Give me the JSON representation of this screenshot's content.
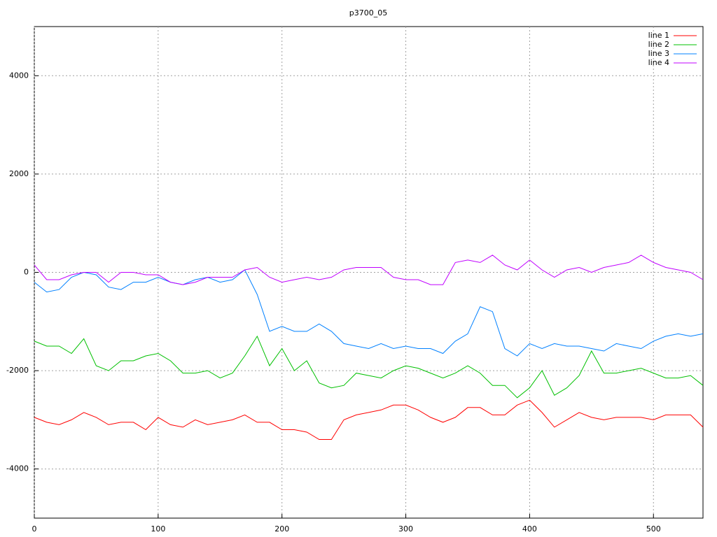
{
  "chart_data": {
    "type": "line",
    "title": "p3700_05",
    "x": [
      0,
      10,
      20,
      30,
      40,
      50,
      60,
      70,
      80,
      90,
      100,
      110,
      120,
      130,
      140,
      150,
      160,
      170,
      180,
      190,
      200,
      210,
      220,
      230,
      240,
      250,
      260,
      270,
      280,
      290,
      300,
      310,
      320,
      330,
      340,
      350,
      360,
      370,
      380,
      390,
      400,
      410,
      420,
      430,
      440,
      450,
      460,
      470,
      480,
      490,
      500,
      510,
      520,
      530,
      540
    ],
    "series": [
      {
        "name": "line 1",
        "color": "#ff0000",
        "values": [
          -2950,
          -3050,
          -3100,
          -3000,
          -2850,
          -2950,
          -3100,
          -3050,
          -3050,
          -3200,
          -2950,
          -3100,
          -3150,
          -3000,
          -3100,
          -3050,
          -3000,
          -2900,
          -3050,
          -3050,
          -3200,
          -3200,
          -3250,
          -3400,
          -3400,
          -3000,
          -2900,
          -2850,
          -2800,
          -2700,
          -2700,
          -2800,
          -2950,
          -3050,
          -2950,
          -2750,
          -2750,
          -2900,
          -2900,
          -2700,
          -2600,
          -2850,
          -3150,
          -3000,
          -2850,
          -2950,
          -3000,
          -2950,
          -2950,
          -2950,
          -3000,
          -2900,
          -2900,
          -2900,
          -3150
        ]
      },
      {
        "name": "line 2",
        "color": "#00c000",
        "values": [
          -1400,
          -1500,
          -1500,
          -1650,
          -1350,
          -1900,
          -2000,
          -1800,
          -1800,
          -1700,
          -1650,
          -1800,
          -2050,
          -2050,
          -2000,
          -2150,
          -2050,
          -1700,
          -1300,
          -1900,
          -1550,
          -2000,
          -1800,
          -2250,
          -2350,
          -2300,
          -2050,
          -2100,
          -2150,
          -2000,
          -1900,
          -1950,
          -2050,
          -2150,
          -2050,
          -1900,
          -2050,
          -2300,
          -2300,
          -2550,
          -2350,
          -2000,
          -2500,
          -2350,
          -2100,
          -1600,
          -2050,
          -2050,
          -2000,
          -1950,
          -2050,
          -2150,
          -2150,
          -2100,
          -2300
        ]
      },
      {
        "name": "line 3",
        "color": "#0080ff",
        "values": [
          -200,
          -400,
          -350,
          -100,
          0,
          -50,
          -300,
          -350,
          -200,
          -200,
          -100,
          -200,
          -250,
          -150,
          -100,
          -200,
          -150,
          50,
          -450,
          -1200,
          -1100,
          -1200,
          -1200,
          -1050,
          -1200,
          -1450,
          -1500,
          -1550,
          -1450,
          -1550,
          -1500,
          -1550,
          -1550,
          -1650,
          -1400,
          -1250,
          -700,
          -800,
          -1550,
          -1700,
          -1450,
          -1550,
          -1450,
          -1500,
          -1500,
          -1550,
          -1600,
          -1450,
          -1500,
          -1550,
          -1400,
          -1300,
          -1250,
          -1300,
          -1250
        ]
      },
      {
        "name": "line 4",
        "color": "#c000ff",
        "values": [
          150,
          -150,
          -150,
          -50,
          0,
          0,
          -200,
          0,
          0,
          -50,
          -50,
          -200,
          -250,
          -200,
          -100,
          -100,
          -100,
          50,
          100,
          -100,
          -200,
          -150,
          -100,
          -150,
          -100,
          50,
          100,
          100,
          100,
          -100,
          -150,
          -150,
          -250,
          -250,
          200,
          250,
          200,
          350,
          150,
          50,
          250,
          50,
          -100,
          50,
          100,
          0,
          100,
          150,
          200,
          350,
          200,
          100,
          50,
          0,
          -150
        ]
      }
    ],
    "xlim": [
      0,
      540
    ],
    "ylim": [
      -5000,
      5000
    ],
    "xticks": [
      0,
      100,
      200,
      300,
      400,
      500
    ],
    "yticks": [
      -4000,
      -2000,
      0,
      2000,
      4000
    ],
    "grid": true,
    "legend": "top-right"
  }
}
